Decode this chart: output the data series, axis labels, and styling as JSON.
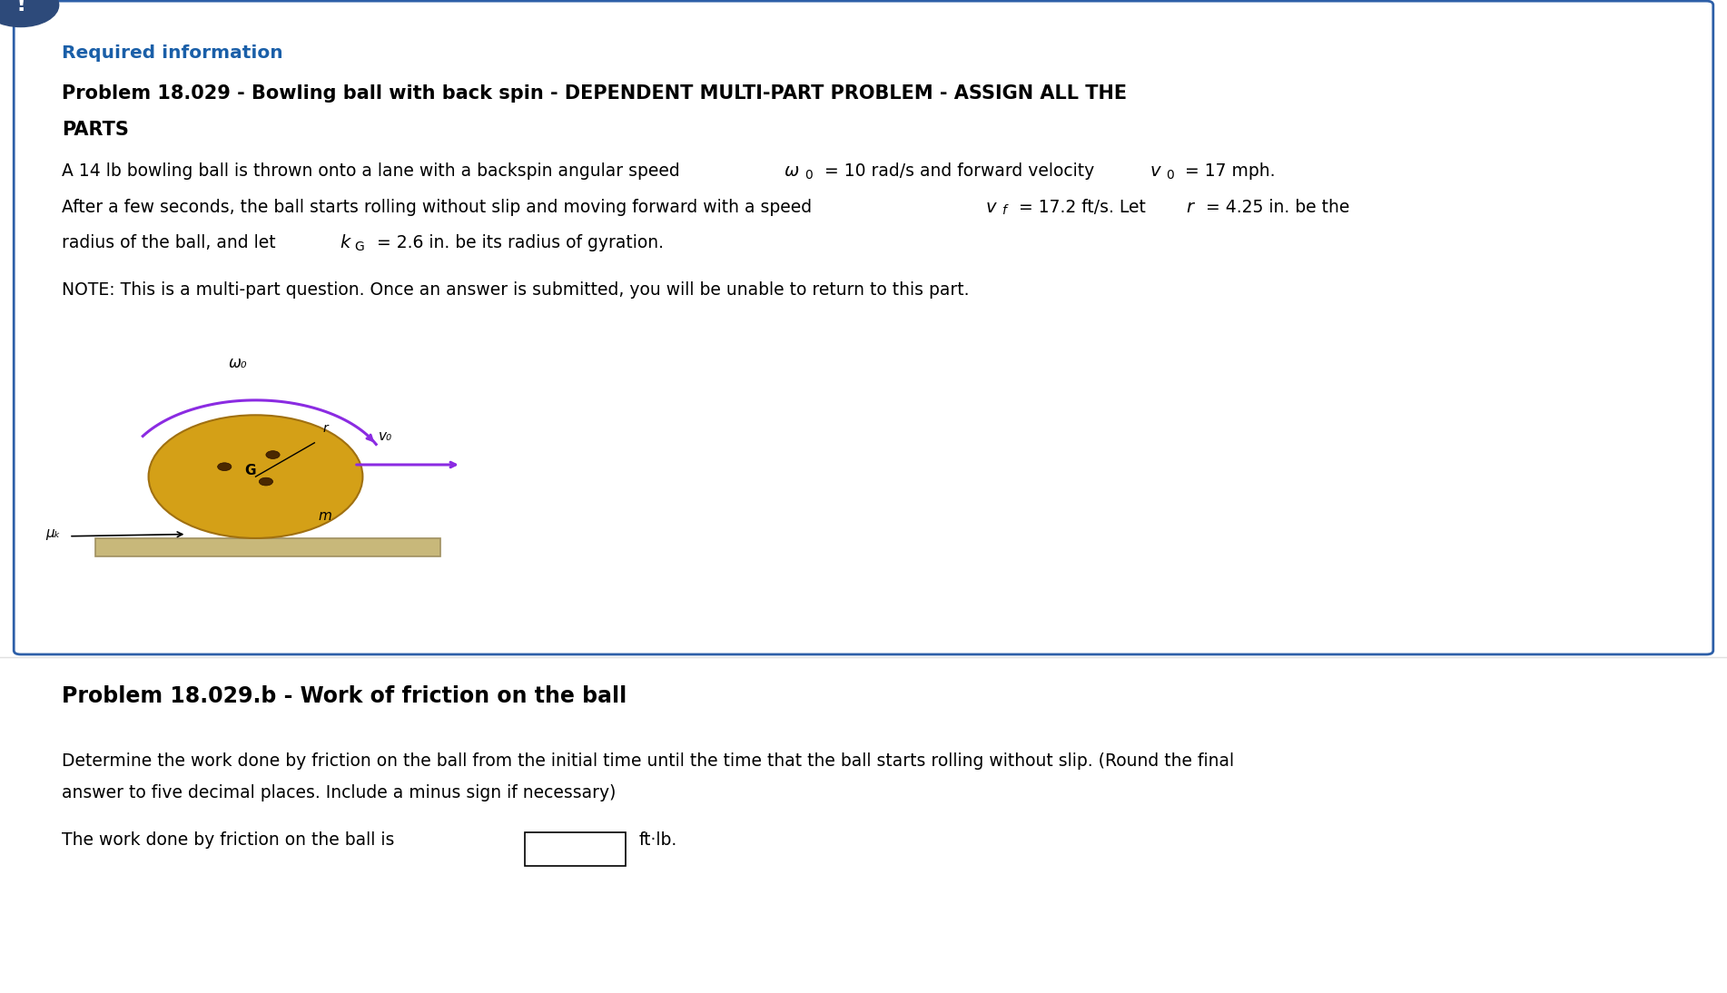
{
  "bg_color": "#ffffff",
  "border_color": "#2d5fa8",
  "exclamation_color": "#2d4a7a",
  "required_info_color": "#1a5fa8",
  "required_info_text": "Required information",
  "part_title": "Problem 18.029.b - Work of friction on the ball",
  "answer_text": "The work done by friction on the ball is",
  "unit_text": "ft·lb.",
  "ball_color": "#d4a017",
  "ball_edge_color": "#a07010",
  "lane_color": "#c8b87a",
  "lane_edge_color": "#a09060",
  "arrow_color": "#8b2be2",
  "note_text": "NOTE: This is a multi-part question. Once an answer is submitted, you will be unable to return to this part.",
  "question_line1": "Determine the work done by friction on the ball from the initial time until the time that the ball starts rolling without slip. (Round the final",
  "question_line2": "answer to five decimal places. Include a minus sign if necessary)"
}
